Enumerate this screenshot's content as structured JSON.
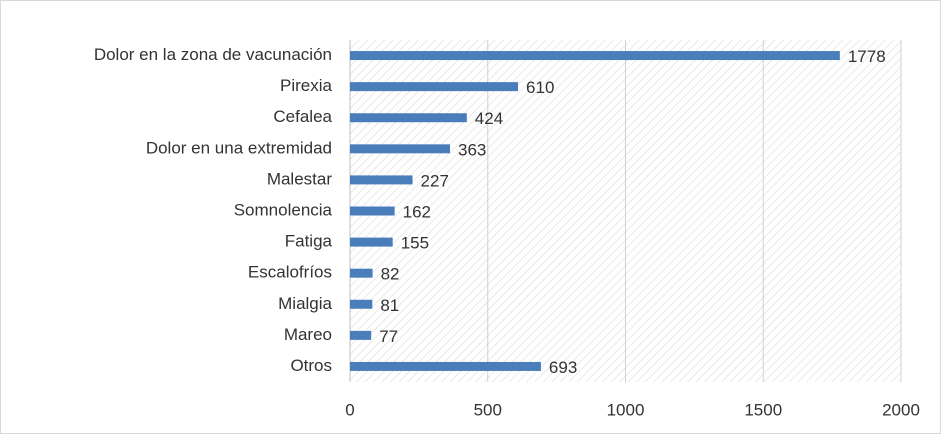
{
  "chart_data": {
    "type": "bar",
    "orientation": "horizontal",
    "categories": [
      "Dolor en la zona de vacunación",
      "Pirexia",
      "Cefalea",
      "Dolor en una extremidad",
      "Malestar",
      "Somnolencia",
      "Fatiga",
      "Escalofríos",
      "Mialgia",
      "Mareo",
      "Otros"
    ],
    "values": [
      1778,
      610,
      424,
      363,
      227,
      162,
      155,
      82,
      81,
      77,
      693
    ],
    "color": "#4a7ebb",
    "xlim": [
      0,
      2000
    ],
    "xticks": [
      0,
      500,
      1000,
      1500,
      2000
    ],
    "grid": true
  }
}
